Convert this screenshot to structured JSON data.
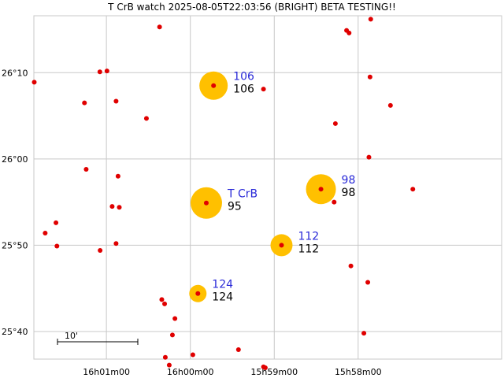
{
  "chart_data": {
    "type": "scatter",
    "title": "T CrB watch 2025-08-05T22:03:56 (BRIGHT) BETA TESTING!!",
    "x_ticks": [
      "16h01m00",
      "16h00m00",
      "15h59m00",
      "15h58m00"
    ],
    "x_tick_values": [
      16.01667,
      16.0,
      15.98333,
      15.96667
    ],
    "y_ticks": [
      "26°10",
      "26°00",
      "25°50",
      "25°40"
    ],
    "y_tick_values": [
      26.16667,
      26.0,
      25.83333,
      25.66667
    ],
    "xlim": [
      16.03108,
      15.93817
    ],
    "ylim": [
      25.61333,
      26.27667
    ],
    "grid": true,
    "scale_bar_label": "10'",
    "colors": {
      "star": "#e00000",
      "comparison_halo": "#ffc000",
      "label_blue": "#2a2ad8",
      "label_black": "#000000",
      "grid": "#c8c8c8"
    },
    "comparison_stars": [
      {
        "name": "106",
        "mag": "106",
        "ra": 15.99539,
        "dec": 26.14167,
        "halo": 18
      },
      {
        "name": "T CrB",
        "mag": "95",
        "ra": 15.99683,
        "dec": 25.915,
        "halo": 20
      },
      {
        "name": "98",
        "mag": "98",
        "ra": 15.97406,
        "dec": 25.94167,
        "halo": 19
      },
      {
        "name": "112",
        "mag": "112",
        "ra": 15.98189,
        "dec": 25.83333,
        "halo": 14
      },
      {
        "name": "124",
        "mag": "124",
        "ra": 15.9985,
        "dec": 25.74,
        "halo": 11
      }
    ],
    "field_stars": [
      {
        "ra": 16.031,
        "dec": 26.14833
      },
      {
        "ra": 16.01797,
        "dec": 26.16833
      },
      {
        "ra": 16.01656,
        "dec": 26.17
      },
      {
        "ra": 16.00611,
        "dec": 26.255
      },
      {
        "ra": 16.02103,
        "dec": 26.10833
      },
      {
        "ra": 16.01475,
        "dec": 26.11167
      },
      {
        "ra": 16.00872,
        "dec": 26.07833
      },
      {
        "ra": 16.01436,
        "dec": 25.96667
      },
      {
        "ra": 16.02069,
        "dec": 25.98
      },
      {
        "ra": 16.01553,
        "dec": 25.90833
      },
      {
        "ra": 16.01411,
        "dec": 25.90667
      },
      {
        "ra": 16.02669,
        "dec": 25.87667
      },
      {
        "ra": 16.02883,
        "dec": 25.85667
      },
      {
        "ra": 16.0265,
        "dec": 25.83167
      },
      {
        "ra": 16.01792,
        "dec": 25.82333
      },
      {
        "ra": 16.01475,
        "dec": 25.83667
      },
      {
        "ra": 16.00567,
        "dec": 25.72833
      },
      {
        "ra": 16.00511,
        "dec": 25.72
      },
      {
        "ra": 16.00306,
        "dec": 25.69167
      },
      {
        "ra": 16.00356,
        "dec": 25.66
      },
      {
        "ra": 16.00419,
        "dec": 25.60167
      },
      {
        "ra": 16.00497,
        "dec": 25.61667
      },
      {
        "ra": 15.9995,
        "dec": 25.62167
      },
      {
        "ra": 15.99044,
        "dec": 25.63167
      },
      {
        "ra": 15.98547,
        "dec": 25.59833
      },
      {
        "ra": 15.98511,
        "dec": 25.59667
      },
      {
        "ra": 15.98547,
        "dec": 26.135
      },
      {
        "ra": 15.97119,
        "dec": 26.06833
      },
      {
        "ra": 15.96897,
        "dec": 26.24833
      },
      {
        "ra": 15.96847,
        "dec": 26.24333
      },
      {
        "ra": 15.96417,
        "dec": 26.27
      },
      {
        "ra": 15.96431,
        "dec": 26.15833
      },
      {
        "ra": 15.96025,
        "dec": 26.10333
      },
      {
        "ra": 15.96453,
        "dec": 26.00333
      },
      {
        "ra": 15.95581,
        "dec": 25.94167
      },
      {
        "ra": 15.97144,
        "dec": 25.91667
      },
      {
        "ra": 15.96811,
        "dec": 25.79333
      },
      {
        "ra": 15.96475,
        "dec": 25.76167
      },
      {
        "ra": 15.96553,
        "dec": 25.66333
      }
    ]
  }
}
